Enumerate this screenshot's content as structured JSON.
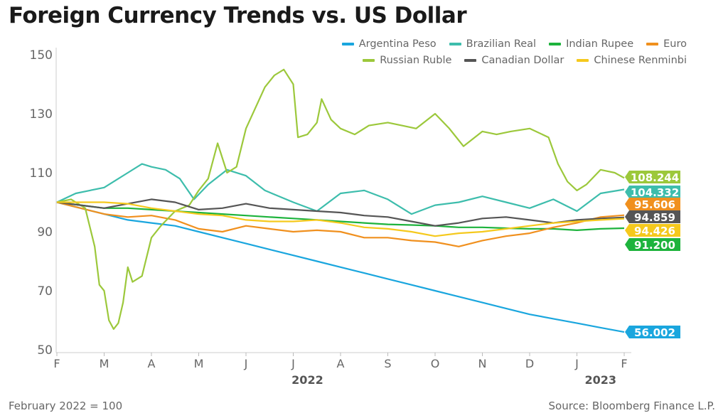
{
  "title": "Foreign Currency Trends vs. US Dollar",
  "footnote": "February 2022 = 100",
  "source": "Source: Bloomberg Finance L.P.",
  "chart_data": {
    "type": "line",
    "title": "Foreign Currency Trends vs. US Dollar",
    "xlabel": "",
    "ylabel": "",
    "ylim": [
      50,
      150
    ],
    "yticks": [
      50,
      70,
      90,
      110,
      130,
      150
    ],
    "x_ticks": [
      "F",
      "M",
      "A",
      "M",
      "J",
      "J",
      "A",
      "S",
      "O",
      "N",
      "D",
      "J",
      "F"
    ],
    "year_labels": [
      "2022",
      "2023"
    ],
    "x_range": [
      0,
      12
    ],
    "grid": false,
    "legend_position": "top-right",
    "series": [
      {
        "name": "Argentina Peso",
        "color": "#1aa6de",
        "end_label": "56.002",
        "end_value": 56.002,
        "points": [
          [
            0,
            100
          ],
          [
            0.5,
            98
          ],
          [
            1,
            96
          ],
          [
            1.5,
            94
          ],
          [
            2,
            93
          ],
          [
            2.5,
            92
          ],
          [
            3,
            90
          ],
          [
            3.5,
            88
          ],
          [
            4,
            86
          ],
          [
            4.5,
            84
          ],
          [
            5,
            82
          ],
          [
            5.5,
            80
          ],
          [
            6,
            78
          ],
          [
            6.5,
            76
          ],
          [
            7,
            74
          ],
          [
            7.5,
            72
          ],
          [
            8,
            70
          ],
          [
            8.5,
            68
          ],
          [
            9,
            66
          ],
          [
            9.5,
            64
          ],
          [
            10,
            62
          ],
          [
            10.5,
            60.5
          ],
          [
            11,
            59
          ],
          [
            11.5,
            57.5
          ],
          [
            12,
            56.002
          ]
        ]
      },
      {
        "name": "Brazilian Real",
        "color": "#3dbdac",
        "end_label": "104.332",
        "end_value": 104.332,
        "points": [
          [
            0,
            100
          ],
          [
            0.4,
            103
          ],
          [
            0.7,
            104
          ],
          [
            1,
            105
          ],
          [
            1.5,
            110
          ],
          [
            1.8,
            113
          ],
          [
            2,
            112
          ],
          [
            2.3,
            111
          ],
          [
            2.6,
            108
          ],
          [
            2.9,
            101
          ],
          [
            3.2,
            106
          ],
          [
            3.6,
            111
          ],
          [
            4,
            109
          ],
          [
            4.4,
            104
          ],
          [
            5,
            100
          ],
          [
            5.5,
            97
          ],
          [
            6,
            103
          ],
          [
            6.5,
            104
          ],
          [
            7,
            101
          ],
          [
            7.5,
            96
          ],
          [
            8,
            99
          ],
          [
            8.5,
            100
          ],
          [
            9,
            102
          ],
          [
            9.5,
            100
          ],
          [
            10,
            98
          ],
          [
            10.5,
            101
          ],
          [
            11,
            97
          ],
          [
            11.5,
            103
          ],
          [
            12,
            104.332
          ]
        ]
      },
      {
        "name": "Indian Rupee",
        "color": "#1db33c",
        "end_label": "91.200",
        "end_value": 91.2,
        "points": [
          [
            0,
            100
          ],
          [
            0.5,
            99
          ],
          [
            1,
            98
          ],
          [
            1.5,
            98
          ],
          [
            2,
            97.5
          ],
          [
            2.5,
            97
          ],
          [
            3,
            96.5
          ],
          [
            3.5,
            96
          ],
          [
            4,
            95.5
          ],
          [
            4.5,
            95
          ],
          [
            5,
            94.5
          ],
          [
            5.5,
            94
          ],
          [
            6,
            93.5
          ],
          [
            6.5,
            93
          ],
          [
            7,
            92.5
          ],
          [
            7.5,
            92.3
          ],
          [
            8,
            92
          ],
          [
            8.5,
            91.5
          ],
          [
            9,
            91.5
          ],
          [
            9.5,
            91.2
          ],
          [
            10,
            91
          ],
          [
            10.5,
            91
          ],
          [
            11,
            90.5
          ],
          [
            11.5,
            91
          ],
          [
            12,
            91.2
          ]
        ]
      },
      {
        "name": "Euro",
        "color": "#f0901e",
        "end_label": "95.606",
        "end_value": 95.606,
        "points": [
          [
            0,
            100
          ],
          [
            0.5,
            98
          ],
          [
            1,
            96
          ],
          [
            1.5,
            95
          ],
          [
            2,
            95.5
          ],
          [
            2.5,
            94
          ],
          [
            3,
            91
          ],
          [
            3.5,
            90
          ],
          [
            4,
            92
          ],
          [
            4.5,
            91
          ],
          [
            5,
            90
          ],
          [
            5.5,
            90.5
          ],
          [
            6,
            90
          ],
          [
            6.5,
            88
          ],
          [
            7,
            88
          ],
          [
            7.5,
            87
          ],
          [
            8,
            86.5
          ],
          [
            8.5,
            85
          ],
          [
            9,
            87
          ],
          [
            9.5,
            88.5
          ],
          [
            10,
            89.5
          ],
          [
            10.5,
            91.5
          ],
          [
            11,
            93
          ],
          [
            11.5,
            95
          ],
          [
            12,
            95.606
          ]
        ]
      },
      {
        "name": "Russian Ruble",
        "color": "#9cc83b",
        "end_label": "108.244",
        "end_value": 108.244,
        "points": [
          [
            0,
            100
          ],
          [
            0.3,
            101
          ],
          [
            0.6,
            98
          ],
          [
            0.8,
            85
          ],
          [
            0.9,
            72
          ],
          [
            1,
            70
          ],
          [
            1.1,
            60
          ],
          [
            1.2,
            57
          ],
          [
            1.3,
            59
          ],
          [
            1.4,
            66
          ],
          [
            1.5,
            78
          ],
          [
            1.6,
            73
          ],
          [
            1.8,
            75
          ],
          [
            2,
            88
          ],
          [
            2.2,
            92
          ],
          [
            2.5,
            97
          ],
          [
            2.8,
            99
          ],
          [
            3,
            104
          ],
          [
            3.2,
            108
          ],
          [
            3.4,
            120
          ],
          [
            3.6,
            110
          ],
          [
            3.8,
            112
          ],
          [
            4,
            125
          ],
          [
            4.2,
            132
          ],
          [
            4.4,
            139
          ],
          [
            4.6,
            143
          ],
          [
            4.8,
            145
          ],
          [
            5,
            140
          ],
          [
            5.1,
            122
          ],
          [
            5.3,
            123
          ],
          [
            5.5,
            127
          ],
          [
            5.6,
            135
          ],
          [
            5.8,
            128
          ],
          [
            6,
            125
          ],
          [
            6.3,
            123
          ],
          [
            6.6,
            126
          ],
          [
            7,
            127
          ],
          [
            7.3,
            126
          ],
          [
            7.6,
            125
          ],
          [
            8,
            130
          ],
          [
            8.3,
            125
          ],
          [
            8.6,
            119
          ],
          [
            9,
            124
          ],
          [
            9.3,
            123
          ],
          [
            9.6,
            124
          ],
          [
            10,
            125
          ],
          [
            10.4,
            122
          ],
          [
            10.6,
            113
          ],
          [
            10.8,
            107
          ],
          [
            11,
            104
          ],
          [
            11.2,
            106
          ],
          [
            11.5,
            111
          ],
          [
            11.8,
            110
          ],
          [
            12,
            108.244
          ]
        ]
      },
      {
        "name": "Canadian Dollar",
        "color": "#555555",
        "end_label": "94.859",
        "end_value": 94.859,
        "points": [
          [
            0,
            100
          ],
          [
            0.5,
            99
          ],
          [
            1,
            98
          ],
          [
            1.5,
            99.5
          ],
          [
            2,
            101
          ],
          [
            2.5,
            100
          ],
          [
            3,
            97.5
          ],
          [
            3.5,
            98
          ],
          [
            4,
            99.5
          ],
          [
            4.5,
            98
          ],
          [
            5,
            97.5
          ],
          [
            5.5,
            97
          ],
          [
            6,
            96.5
          ],
          [
            6.5,
            95.5
          ],
          [
            7,
            95
          ],
          [
            7.5,
            93.5
          ],
          [
            8,
            92
          ],
          [
            8.5,
            93
          ],
          [
            9,
            94.5
          ],
          [
            9.5,
            95
          ],
          [
            10,
            94
          ],
          [
            10.5,
            93
          ],
          [
            11,
            94
          ],
          [
            11.5,
            94.5
          ],
          [
            12,
            94.859
          ]
        ]
      },
      {
        "name": "Chinese Renminbi",
        "color": "#f5c91d",
        "end_label": "94.426",
        "end_value": 94.426,
        "points": [
          [
            0,
            100
          ],
          [
            0.5,
            100
          ],
          [
            1,
            100
          ],
          [
            1.5,
            99.5
          ],
          [
            2,
            98
          ],
          [
            2.5,
            97
          ],
          [
            3,
            96
          ],
          [
            3.5,
            95.5
          ],
          [
            4,
            94
          ],
          [
            4.5,
            93.5
          ],
          [
            5,
            93.5
          ],
          [
            5.5,
            94
          ],
          [
            6,
            93
          ],
          [
            6.5,
            91.5
          ],
          [
            7,
            91
          ],
          [
            7.5,
            90
          ],
          [
            8,
            88.5
          ],
          [
            8.5,
            89.5
          ],
          [
            9,
            90
          ],
          [
            9.5,
            91
          ],
          [
            10,
            92
          ],
          [
            10.5,
            93
          ],
          [
            11,
            93.5
          ],
          [
            11.5,
            94
          ],
          [
            12,
            94.426
          ]
        ]
      }
    ]
  }
}
